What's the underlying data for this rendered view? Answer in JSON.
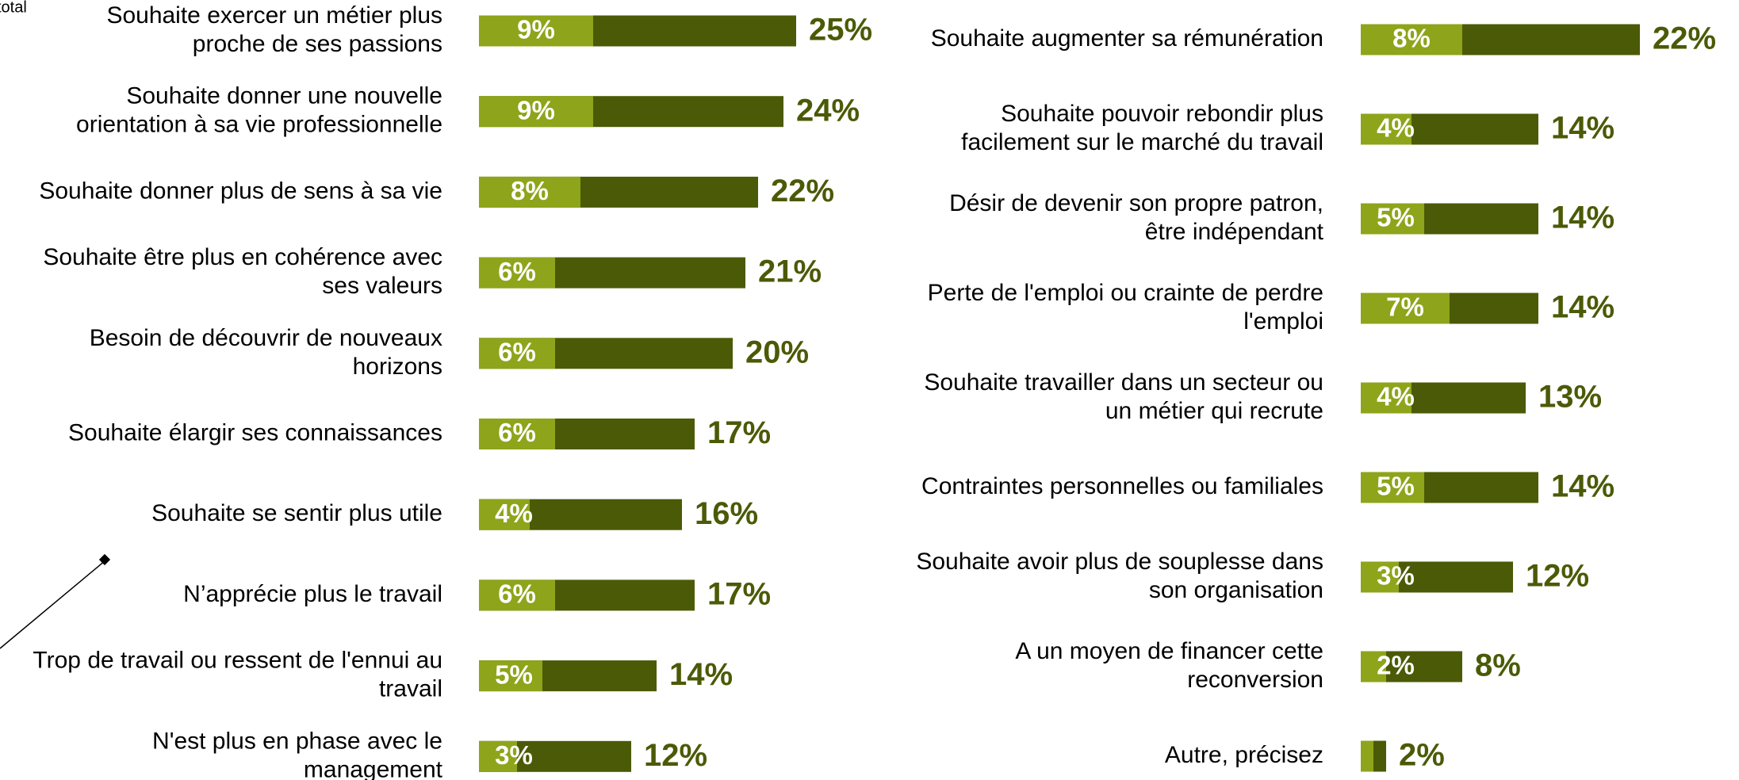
{
  "annotations": [
    "total"
  ],
  "chart_data": [
    {
      "type": "bar",
      "categories": [
        "Souhaite exercer un métier plus\nproche de ses passions",
        "Souhaite donner une nouvelle\norientation à sa vie professionnelle",
        "Souhaite donner plus de sens à sa vie",
        "Souhaite être plus en cohérence avec\nses valeurs",
        "Besoin de découvrir de nouveaux\nhorizons",
        "Souhaite élargir ses connaissances",
        "Souhaite se sentir plus utile",
        "N’apprécie plus le travail",
        "Trop de travail ou ressent de l'ennui au\ntravail",
        "N'est plus en phase avec le\nmanagement"
      ],
      "series": [
        {
          "color": "#4b5a06",
          "values": [
            25,
            24,
            22,
            21,
            20,
            17,
            16,
            17,
            14,
            12
          ],
          "value_labels": [
            "25%",
            "24%",
            "22%",
            "21%",
            "20%",
            "17%",
            "16%",
            "17%",
            "14%",
            "12%"
          ]
        },
        {
          "color": "#8ea41a",
          "values": [
            9,
            9,
            8,
            6,
            6,
            6,
            4,
            6,
            5,
            3
          ],
          "value_labels": [
            "9%",
            "9%",
            "8%",
            "6%",
            "6%",
            "6%",
            "4%",
            "6%",
            "5%",
            "3%"
          ]
        }
      ]
    },
    {
      "type": "bar",
      "categories": [
        "Souhaite augmenter sa rémunération",
        "Souhaite pouvoir rebondir plus\nfacilement sur le marché du travail",
        "Désir de devenir son propre patron,\nêtre indépendant",
        "Perte de l'emploi ou  crainte de perdre\nl'emploi",
        "Souhaite travailler dans un secteur ou\nun métier qui recrute",
        "Contraintes personnelles ou familiales",
        "Souhaite avoir plus de souplesse dans\nson organisation",
        "A un moyen de financer cette\nreconversion",
        "Autre, précisez"
      ],
      "series": [
        {
          "color": "#4b5a06",
          "values": [
            22,
            14,
            14,
            14,
            13,
            14,
            12,
            8,
            2
          ],
          "value_labels": [
            "22%",
            "14%",
            "14%",
            "14%",
            "13%",
            "14%",
            "12%",
            "8%",
            "2%"
          ]
        },
        {
          "color": "#8ea41a",
          "values": [
            8,
            4,
            5,
            7,
            4,
            5,
            3,
            2,
            1
          ],
          "value_labels": [
            "8%",
            "4%",
            "5%",
            "7%",
            "4%",
            "5%",
            "3%",
            "2%",
            null
          ]
        }
      ]
    }
  ]
}
